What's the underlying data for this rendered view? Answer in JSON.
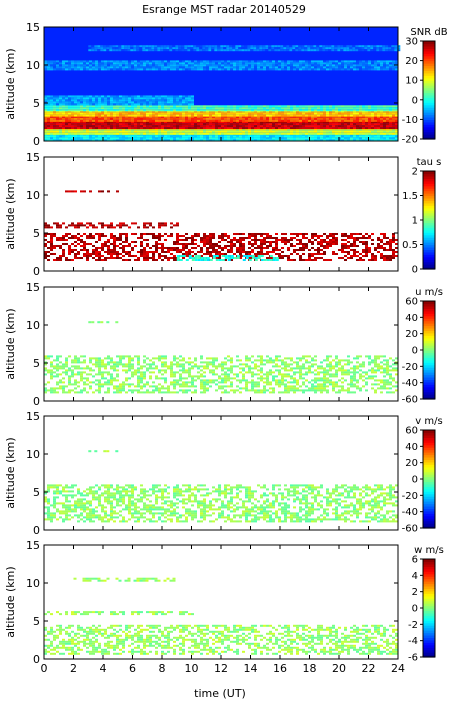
{
  "chart_data": {
    "type": "heatmap",
    "title": "Esrange MST radar 20140529",
    "xlabel": "time (UT)",
    "xlim": [
      0,
      24
    ],
    "xticks": [
      "0",
      "2",
      "4",
      "6",
      "8",
      "10",
      "12",
      "14",
      "16",
      "18",
      "20",
      "22",
      "24"
    ],
    "panels": [
      {
        "ylabel": "altitude (km)",
        "ylim": [
          0,
          15
        ],
        "yticks": [
          "0",
          "5",
          "10",
          "15"
        ],
        "colorbar": {
          "label": "SNR dB",
          "range": [
            -20,
            30
          ],
          "ticks": [
            "30",
            "20",
            "10",
            "0",
            "-10",
            "-20"
          ]
        },
        "background_value": -12,
        "layers": [
          {
            "alt": [
              0.0,
              1.0
            ],
            "x": [
              0,
              24
            ],
            "value": -2
          },
          {
            "alt": [
              1.0,
              1.6
            ],
            "x": [
              0,
              24
            ],
            "value": 9
          },
          {
            "alt": [
              1.6,
              2.6
            ],
            "x": [
              0,
              24
            ],
            "value": 26
          },
          {
            "alt": [
              2.6,
              3.3
            ],
            "x": [
              0,
              24
            ],
            "value": 20
          },
          {
            "alt": [
              3.3,
              4.0
            ],
            "x": [
              0,
              24
            ],
            "value": 14
          },
          {
            "alt": [
              4.0,
              4.7
            ],
            "x": [
              0,
              24
            ],
            "value": 2
          },
          {
            "alt": [
              4.7,
              6.0
            ],
            "x": [
              0,
              10
            ],
            "value": -6
          },
          {
            "alt": [
              9.4,
              10.6
            ],
            "x": [
              0,
              24
            ],
            "value": -7
          },
          {
            "alt": [
              12.0,
              12.6
            ],
            "x": [
              3,
              24
            ],
            "value": -8
          }
        ]
      },
      {
        "ylabel": "altitude (km)",
        "ylim": [
          0,
          15
        ],
        "yticks": [
          "0",
          "5",
          "10",
          "15"
        ],
        "colorbar": {
          "label": "tau s",
          "range": [
            0,
            2
          ],
          "ticks": [
            "2",
            "1.5",
            "1",
            "0.5",
            "0"
          ]
        },
        "layers": [
          {
            "alt": [
              1.4,
              5.0
            ],
            "x": [
              0,
              24
            ],
            "value": 1.9
          },
          {
            "alt": [
              5.8,
              6.4
            ],
            "x": [
              0,
              9
            ],
            "value": 1.9
          },
          {
            "alt": [
              10.4,
              10.6
            ],
            "x": [
              0,
              5
            ],
            "value": 1.9
          },
          {
            "alt": [
              1.5,
              2.1
            ],
            "x": [
              9,
              16
            ],
            "value": 0.8
          }
        ]
      },
      {
        "ylabel": "altitude (km)",
        "ylim": [
          0,
          15
        ],
        "yticks": [
          "0",
          "5",
          "10",
          "15"
        ],
        "colorbar": {
          "label": "u m/s",
          "range": [
            -60,
            60
          ],
          "ticks": [
            "60",
            "40",
            "20",
            "0",
            "-20",
            "-40",
            "-60"
          ]
        },
        "layers": [
          {
            "alt": [
              1.0,
              6.0
            ],
            "x": [
              0,
              24
            ],
            "value": 2
          },
          {
            "alt": [
              10.3,
              10.5
            ],
            "x": [
              3,
              5
            ],
            "value": 2
          }
        ]
      },
      {
        "ylabel": "altitude (km)",
        "ylim": [
          0,
          15
        ],
        "yticks": [
          "0",
          "5",
          "10",
          "15"
        ],
        "colorbar": {
          "label": "v m/s",
          "range": [
            -60,
            60
          ],
          "ticks": [
            "60",
            "40",
            "20",
            "0",
            "-20",
            "-40",
            "-60"
          ]
        },
        "layers": [
          {
            "alt": [
              1.0,
              6.0
            ],
            "x": [
              0,
              24
            ],
            "value": 2
          },
          {
            "alt": [
              10.3,
              10.5
            ],
            "x": [
              3,
              5
            ],
            "value": 2
          }
        ]
      },
      {
        "ylabel": "altitude (km)",
        "ylim": [
          0,
          15
        ],
        "yticks": [
          "0",
          "5",
          "10",
          "15"
        ],
        "colorbar": {
          "label": "w m/s",
          "range": [
            -6,
            6
          ],
          "ticks": [
            "6",
            "4",
            "2",
            "0",
            "-2",
            "-4",
            "-6"
          ]
        },
        "layers": [
          {
            "alt": [
              0.8,
              4.5
            ],
            "x": [
              0,
              24
            ],
            "value": 0.3
          },
          {
            "alt": [
              5.8,
              6.3
            ],
            "x": [
              0,
              10
            ],
            "value": 0.3
          },
          {
            "alt": [
              10.4,
              10.7
            ],
            "x": [
              2,
              9
            ],
            "value": 0.3
          }
        ]
      }
    ]
  }
}
